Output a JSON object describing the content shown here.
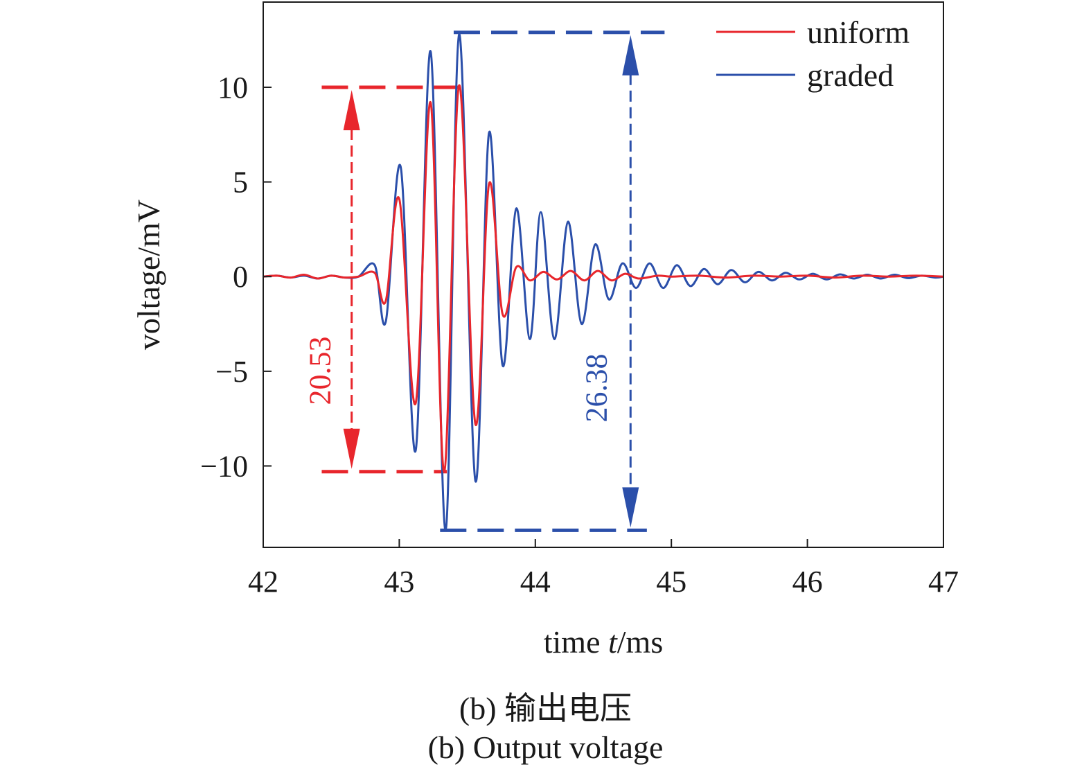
{
  "chart_data": {
    "type": "line",
    "title": "",
    "xlabel": {
      "prefix": "time ",
      "var": "t",
      "suffix": "/ms"
    },
    "ylabel": "voltage/mV",
    "xlim": [
      42,
      47
    ],
    "ylim": [
      -14.3,
      14.5
    ],
    "x_ticks": [
      42,
      43,
      44,
      45,
      46,
      47
    ],
    "y_ticks": [
      10,
      5,
      0,
      -5,
      -10
    ],
    "y_tick_labels": [
      "10",
      "5",
      "0",
      "−5",
      "−10"
    ],
    "grid": false,
    "legend": {
      "placement": "top-right"
    },
    "series": [
      {
        "name": "uniform",
        "color": "#e8262c",
        "x": [
          42.0,
          42.1,
          42.2,
          42.3,
          42.4,
          42.5,
          42.6,
          42.7,
          42.82,
          42.9,
          43.0,
          43.12,
          43.23,
          43.33,
          43.44,
          43.56,
          43.66,
          43.76,
          43.86,
          43.96,
          44.06,
          44.16,
          44.26,
          44.36,
          44.46,
          44.56,
          44.66,
          44.76,
          44.9,
          45.0,
          45.2,
          45.4,
          45.6,
          45.8,
          46.0,
          46.2,
          46.4,
          46.6,
          46.8,
          47.0
        ],
        "y": [
          0.0,
          0.05,
          -0.05,
          0.1,
          -0.1,
          0.05,
          -0.05,
          0.0,
          0.2,
          -1.3,
          4.1,
          -6.7,
          9.2,
          -10.3,
          10.1,
          -7.8,
          4.9,
          -2.0,
          0.5,
          -0.2,
          0.25,
          -0.15,
          0.3,
          -0.2,
          0.3,
          -0.2,
          0.15,
          -0.1,
          0.05,
          0.0,
          0.05,
          -0.05,
          0.05,
          0.0,
          0.05,
          -0.05,
          0.05,
          0.0,
          0.05,
          0.0
        ]
      },
      {
        "name": "graded",
        "color": "#2b4faa",
        "x": [
          42.0,
          42.1,
          42.2,
          42.3,
          42.4,
          42.5,
          42.6,
          42.7,
          42.82,
          42.9,
          43.01,
          43.12,
          43.23,
          43.34,
          43.44,
          43.56,
          43.66,
          43.76,
          43.86,
          43.96,
          44.04,
          44.14,
          44.24,
          44.34,
          44.44,
          44.54,
          44.64,
          44.74,
          44.84,
          44.94,
          45.04,
          45.14,
          45.24,
          45.34,
          45.44,
          45.54,
          45.64,
          45.74,
          45.84,
          45.94,
          46.04,
          46.14,
          46.24,
          46.34,
          46.44,
          46.54,
          46.64,
          46.74,
          46.84,
          46.94,
          47.0
        ],
        "y": [
          0.0,
          0.05,
          -0.05,
          0.05,
          -0.1,
          0.05,
          -0.05,
          0.0,
          0.6,
          -2.4,
          5.8,
          -9.2,
          11.9,
          -13.4,
          12.8,
          -10.8,
          7.6,
          -4.7,
          3.6,
          -3.3,
          3.4,
          -3.3,
          2.9,
          -2.5,
          1.7,
          -1.2,
          0.7,
          -0.6,
          0.7,
          -0.6,
          0.6,
          -0.5,
          0.4,
          -0.4,
          0.35,
          -0.3,
          0.25,
          -0.2,
          0.2,
          -0.15,
          0.15,
          -0.15,
          0.12,
          -0.1,
          0.1,
          -0.1,
          0.1,
          -0.08,
          0.05,
          -0.05,
          0.0
        ]
      }
    ],
    "annotations": [
      {
        "label": "20.53",
        "color": "#e8262c",
        "top": 10.0,
        "bottom": -10.3,
        "arrow_x": 42.65,
        "top_line": [
          42.43,
          43.5
        ],
        "bottom_line": [
          42.43,
          43.35
        ]
      },
      {
        "label": "26.38",
        "color": "#2b4faa",
        "top": 12.9,
        "bottom": -13.4,
        "arrow_x": 44.7,
        "top_line": [
          43.4,
          44.95
        ],
        "bottom_line": [
          43.3,
          44.82
        ]
      }
    ]
  },
  "caption": {
    "zh": "(b) 输出电压",
    "en": "(b) Output voltage"
  }
}
